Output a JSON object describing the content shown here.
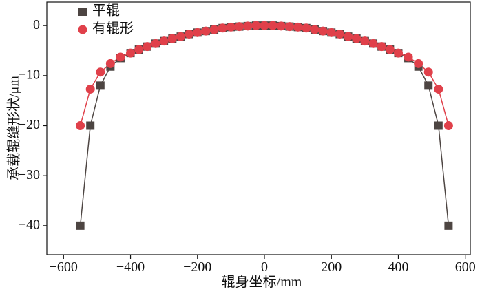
{
  "chart_data": {
    "type": "line",
    "x_label": "辊身坐标/mm",
    "y_label": "承载辊缝形状/μm",
    "x": [
      -550,
      -520,
      -490,
      -460,
      -430,
      -400,
      -375,
      -350,
      -325,
      -300,
      -275,
      -250,
      -225,
      -200,
      -175,
      -150,
      -125,
      -100,
      -75,
      -50,
      -25,
      0,
      25,
      50,
      75,
      100,
      125,
      150,
      175,
      200,
      225,
      250,
      275,
      300,
      325,
      350,
      375,
      400,
      430,
      460,
      490,
      520,
      550
    ],
    "series": [
      {
        "name": "平辊",
        "color": "#4d4542",
        "marker": "square",
        "values": [
          -40,
          -20,
          -12,
          -8.2,
          -6.5,
          -5.5,
          -4.8,
          -4.2,
          -3.6,
          -3.1,
          -2.6,
          -2.2,
          -1.7,
          -1.4,
          -1.1,
          -0.8,
          -0.5,
          -0.3,
          -0.2,
          -0.1,
          0,
          0,
          0,
          -0.1,
          -0.2,
          -0.3,
          -0.5,
          -0.8,
          -1.1,
          -1.4,
          -1.7,
          -2.2,
          -2.6,
          -3.1,
          -3.6,
          -4.2,
          -4.8,
          -5.5,
          -6.5,
          -8.2,
          -12,
          -20,
          -40
        ]
      },
      {
        "name": "有辊形",
        "color": "#e0404a",
        "marker": "circle",
        "values": [
          -20,
          -12.7,
          -9.3,
          -7.6,
          -6.3,
          -5.5,
          -4.8,
          -4.2,
          -3.6,
          -3.1,
          -2.6,
          -2.2,
          -1.7,
          -1.4,
          -1.1,
          -0.8,
          -0.5,
          -0.3,
          -0.2,
          -0.1,
          0,
          0,
          0,
          -0.1,
          -0.2,
          -0.3,
          -0.5,
          -0.8,
          -1.1,
          -1.4,
          -1.7,
          -2.2,
          -2.6,
          -3.1,
          -3.6,
          -4.2,
          -4.8,
          -5.5,
          -6.3,
          -7.6,
          -9.3,
          -12.7,
          -20
        ]
      }
    ],
    "xlim": [
      -650,
      615
    ],
    "ylim": [
      -45.8,
      4.7
    ],
    "xticks": [
      {
        "value": -600,
        "label": "−600"
      },
      {
        "value": -400,
        "label": "−400"
      },
      {
        "value": -200,
        "label": "−200"
      },
      0,
      200,
      400,
      600
    ],
    "yticks": [
      0,
      {
        "value": -10,
        "label": "−10"
      },
      {
        "value": -20,
        "label": "−20"
      },
      {
        "value": -30,
        "label": "−30"
      },
      {
        "value": -40,
        "label": "−40"
      }
    ],
    "legend": "upper left"
  }
}
